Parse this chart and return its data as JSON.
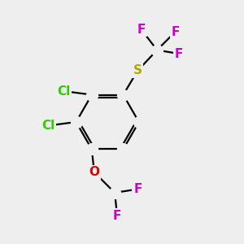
{
  "background_color": "#eeeeee",
  "figsize": [
    3.0,
    3.0
  ],
  "dpi": 100,
  "atom_colors": {
    "C": "#000000",
    "Cl": "#33cc00",
    "F": "#cc00cc",
    "S": "#aaaa00",
    "O": "#dd0000"
  },
  "bond_color": "#000000",
  "bond_lw": 1.6,
  "font_size": 11
}
